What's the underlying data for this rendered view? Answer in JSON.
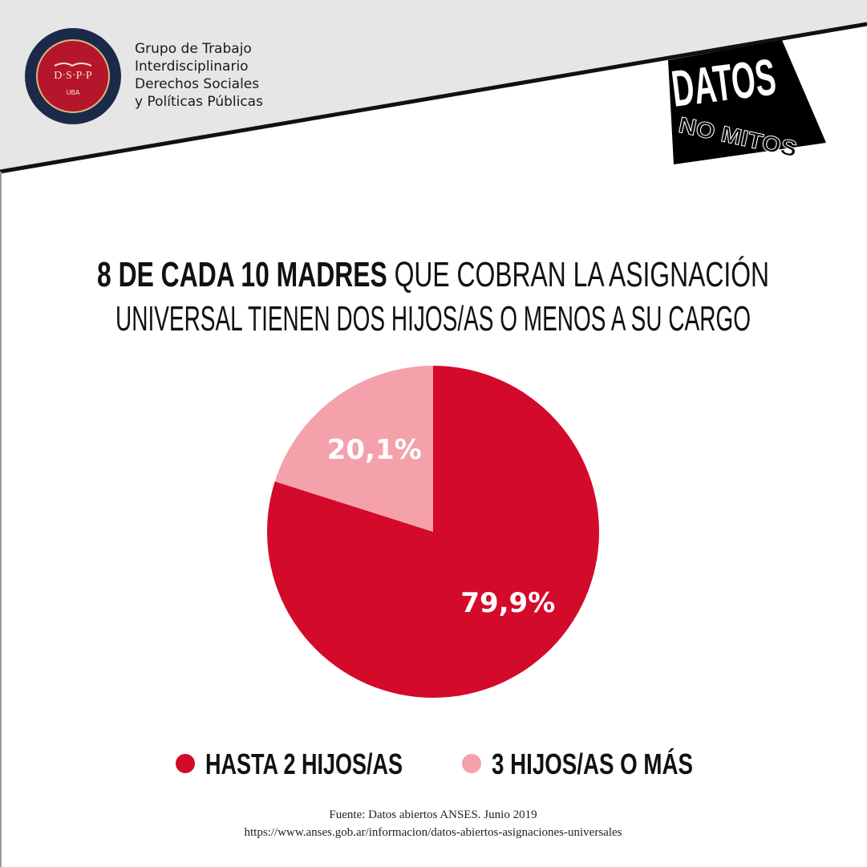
{
  "header": {
    "org_lines": [
      "Grupo de Trabajo",
      "Interdisciplinario",
      "Derechos Sociales",
      "y Políticas Públicas"
    ],
    "logo_initials": "D·S·P·P",
    "logo_sub": "UBA",
    "brand_top": "DATOS",
    "brand_bottom": "NO MITOS"
  },
  "chart_data": {
    "type": "pie",
    "title_bold": "8 DE CADA 10 MADRES",
    "title_rest": "QUE COBRAN LA ASIGNACIÓN",
    "title_line2": "UNIVERSAL TIENEN DOS HIJOS/AS O MENOS A SU CARGO",
    "categories": [
      "HASTA 2 HIJOS/AS",
      "3 HIJOS/AS O MÁS"
    ],
    "values": [
      79.9,
      20.1
    ],
    "value_labels": [
      "79,9%",
      "20,1%"
    ],
    "colors": [
      "#d40a2b",
      "#f4a1ab"
    ]
  },
  "source": [
    "Fuente: Datos abiertos ANSES. Junio 2019",
    "https://www.anses.gob.ar/informacion/datos-abiertos-asignaciones-universales"
  ]
}
